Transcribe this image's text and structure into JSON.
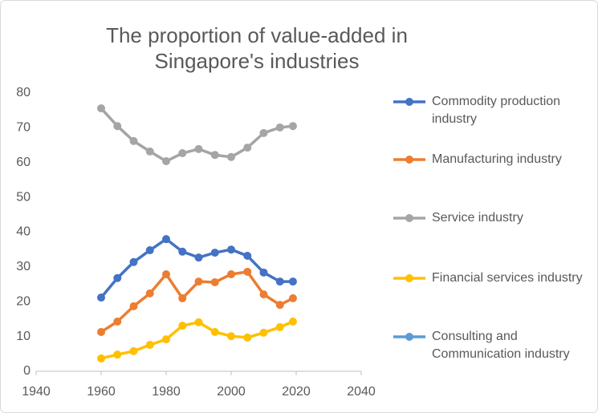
{
  "chart_data": {
    "type": "line",
    "title": "The proportion of value-added in Singapore's industries",
    "x": [
      1960,
      1965,
      1970,
      1975,
      1980,
      1985,
      1990,
      1995,
      2000,
      2005,
      2010,
      2015,
      2019
    ],
    "xlim": [
      1940,
      2040
    ],
    "xticks": [
      1940,
      1960,
      1980,
      2000,
      2020,
      2040
    ],
    "ylim": [
      0,
      80
    ],
    "yticks": [
      0,
      10,
      20,
      30,
      40,
      50,
      60,
      70,
      80
    ],
    "grid": false,
    "legend": "right",
    "series": [
      {
        "name": "Commodity production industry",
        "color": "#4472c4",
        "values": [
          21.2,
          26.8,
          31.4,
          34.8,
          38.0,
          34.4,
          32.7,
          34.1,
          35.0,
          33.2,
          28.4,
          25.8,
          25.8
        ]
      },
      {
        "name": "Manufacturing industry",
        "color": "#ed7d31",
        "values": [
          11.3,
          14.3,
          18.7,
          22.4,
          27.9,
          21.0,
          25.8,
          25.6,
          27.9,
          28.6,
          22.1,
          19.1,
          21.0
        ]
      },
      {
        "name": "Service industry",
        "color": "#a5a5a5",
        "values": [
          75.6,
          70.5,
          66.2,
          63.2,
          60.4,
          62.7,
          63.9,
          62.2,
          61.6,
          64.3,
          68.5,
          70.1,
          70.5
        ]
      },
      {
        "name": "Financial services industry",
        "color": "#ffc000",
        "values": [
          3.7,
          4.8,
          5.8,
          7.6,
          9.2,
          13.1,
          14.1,
          11.3,
          10.1,
          9.7,
          11.1,
          12.7,
          14.3
        ]
      },
      {
        "name": "Consulting and Communication industry",
        "color": "#5b9bd5",
        "values": [
          null,
          null,
          null,
          null,
          null,
          null,
          null,
          null,
          null,
          null,
          null,
          null,
          null
        ]
      }
    ]
  }
}
